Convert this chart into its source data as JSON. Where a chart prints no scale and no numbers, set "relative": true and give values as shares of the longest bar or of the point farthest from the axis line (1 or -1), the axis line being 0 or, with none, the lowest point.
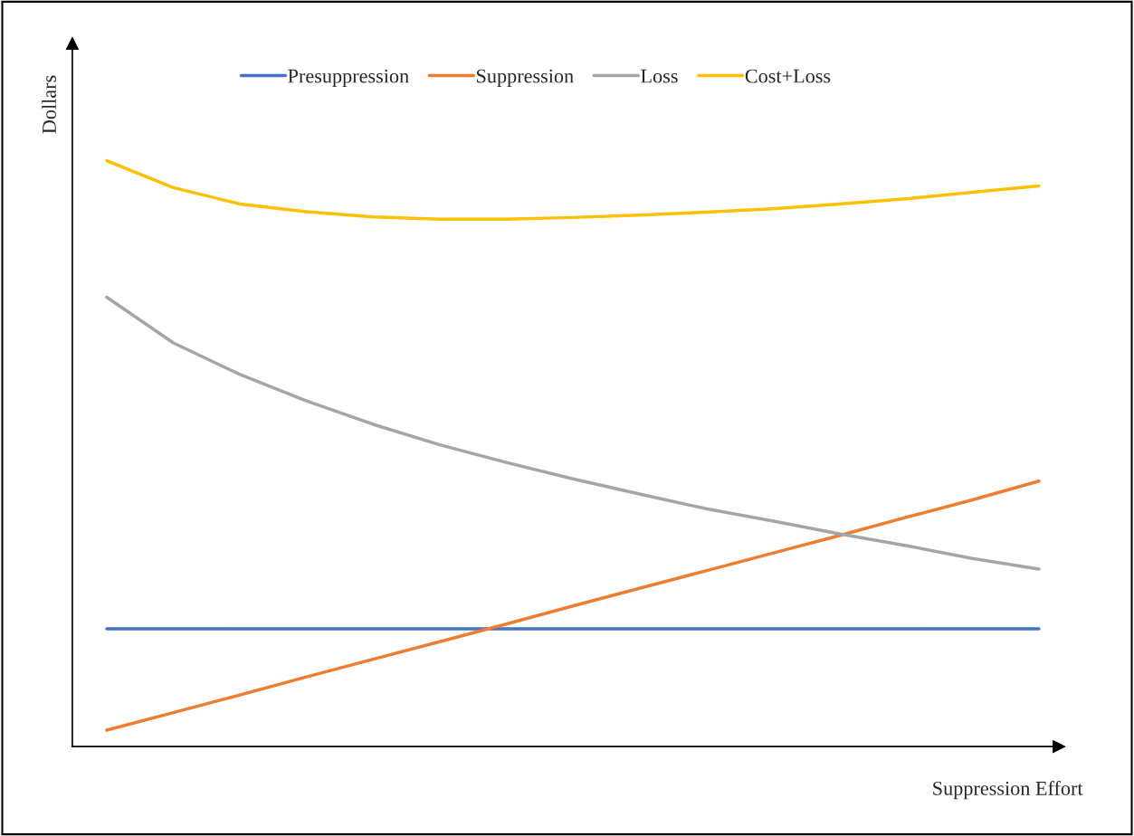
{
  "chart_data": {
    "type": "line",
    "relative": true,
    "xlabel": "Suppression Effort",
    "ylabel": "Dollars",
    "categories": [
      null,
      null,
      null,
      null,
      null,
      null,
      null,
      null,
      null,
      null,
      null,
      null,
      null,
      null,
      null
    ],
    "legend": "top",
    "grid": false,
    "marker": "none",
    "line_style": "solid",
    "series": [
      {
        "name": "Presuppression",
        "color": "#4472c4",
        "values": [
          0.201,
          0.201,
          0.201,
          0.201,
          0.201,
          0.201,
          0.201,
          0.201,
          0.201,
          0.201,
          0.201,
          0.201,
          0.201,
          0.201,
          0.201
        ]
      },
      {
        "name": "Suppression",
        "color": "#ed7d31",
        "values": [
          0.028,
          0.058,
          0.088,
          0.119,
          0.149,
          0.179,
          0.209,
          0.24,
          0.27,
          0.3,
          0.33,
          0.36,
          0.391,
          0.421,
          0.453
        ]
      },
      {
        "name": "Loss",
        "color": "#a5a5a5",
        "values": [
          0.767,
          0.689,
          0.635,
          0.59,
          0.55,
          0.515,
          0.485,
          0.457,
          0.431,
          0.406,
          0.385,
          0.363,
          0.343,
          0.321,
          0.303
        ]
      },
      {
        "name": "Cost+Loss",
        "color": "#ffc000",
        "values": [
          1.0,
          0.954,
          0.926,
          0.913,
          0.904,
          0.9,
          0.9,
          0.903,
          0.907,
          0.912,
          0.918,
          0.926,
          0.935,
          0.946,
          0.957
        ]
      }
    ]
  }
}
